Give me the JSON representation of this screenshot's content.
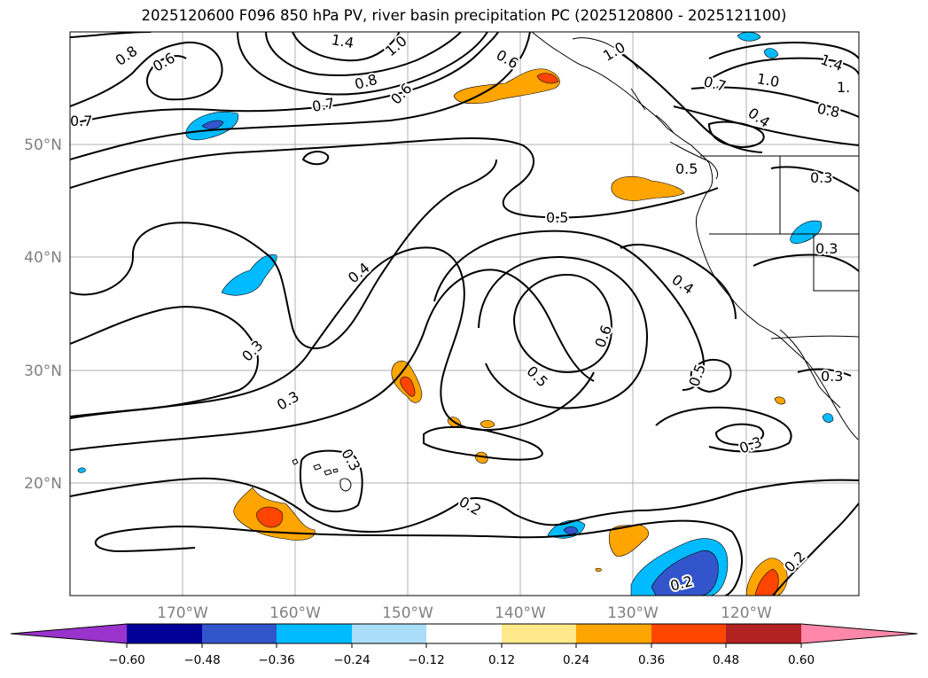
{
  "title": "2025120600 F096 850 hPa PV, river basin precipitation PC (2025120800 - 2025121100)",
  "map": {
    "lon_range": [
      -180,
      -110
    ],
    "lat_range": [
      10,
      60
    ],
    "lat_labels": [
      "50°N",
      "40°N",
      "30°N",
      "20°N"
    ],
    "lon_labels": [
      "170°W",
      "160°W",
      "150°W",
      "140°W",
      "130°W",
      "120°W"
    ],
    "contour_labels": [
      "0.8",
      "0.6",
      "1.4",
      "1.0",
      "0.8",
      "0.7",
      "0.6",
      "0.6",
      "1.0",
      "0.7",
      "1.0",
      "1.4",
      "0.8",
      "0.4",
      "0.5",
      "0.3",
      "0.5",
      "0.4",
      "0.3",
      "0.3",
      "0.4",
      "0.6",
      "0.5",
      "0.5",
      "0.3",
      "0.3",
      "0.3",
      "0.2",
      "0.2",
      "0.2",
      "1.",
      "0.7"
    ]
  },
  "colorbar": {
    "ticks": [
      "−0.60",
      "−0.48",
      "−0.36",
      "−0.24",
      "−0.12",
      "0.12",
      "0.24",
      "0.36",
      "0.48",
      "0.60"
    ],
    "colors": {
      "under": "#9933cc",
      "bins": [
        "#000099",
        "#3355cc",
        "#00bbff",
        "#aaddf7",
        "#ffffff",
        "#ffe98a",
        "#ffa500",
        "#ff4500",
        "#b22222"
      ],
      "over": "#ff88aa"
    }
  }
}
